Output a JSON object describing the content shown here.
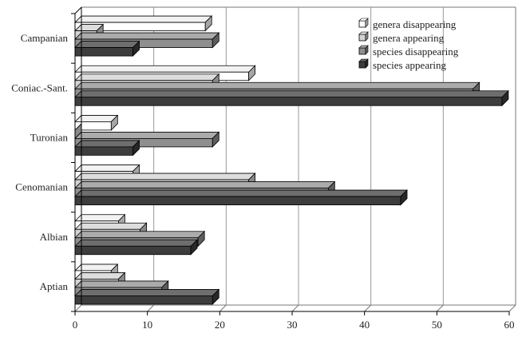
{
  "chart_data": {
    "type": "bar",
    "orientation": "horizontal",
    "categories": [
      "Campanian",
      "Coniac.-Sant.",
      "Turonian",
      "Cenomanian",
      "Albian",
      "Aptian"
    ],
    "series": [
      {
        "name": "genera disappearing",
        "color": "#ffffff",
        "values": [
          18,
          24,
          5,
          8,
          6,
          5
        ]
      },
      {
        "name": "genera appearing",
        "color": "#d2d2d2",
        "values": [
          3,
          19,
          0,
          24,
          9,
          6
        ]
      },
      {
        "name": "species disappearing",
        "color": "#8f8f8f",
        "values": [
          19,
          55,
          19,
          35,
          17,
          12
        ]
      },
      {
        "name": "species appearing",
        "color": "#3d3d3d",
        "values": [
          8,
          59,
          8,
          45,
          16,
          19
        ]
      }
    ],
    "xlim": [
      0,
      60
    ],
    "xticks": [
      "0",
      "10",
      "20",
      "30",
      "40",
      "50",
      "60"
    ],
    "title": "",
    "xlabel": "",
    "ylabel": "",
    "grid": "vertical",
    "legend_position": "top-right",
    "style": "3d"
  }
}
